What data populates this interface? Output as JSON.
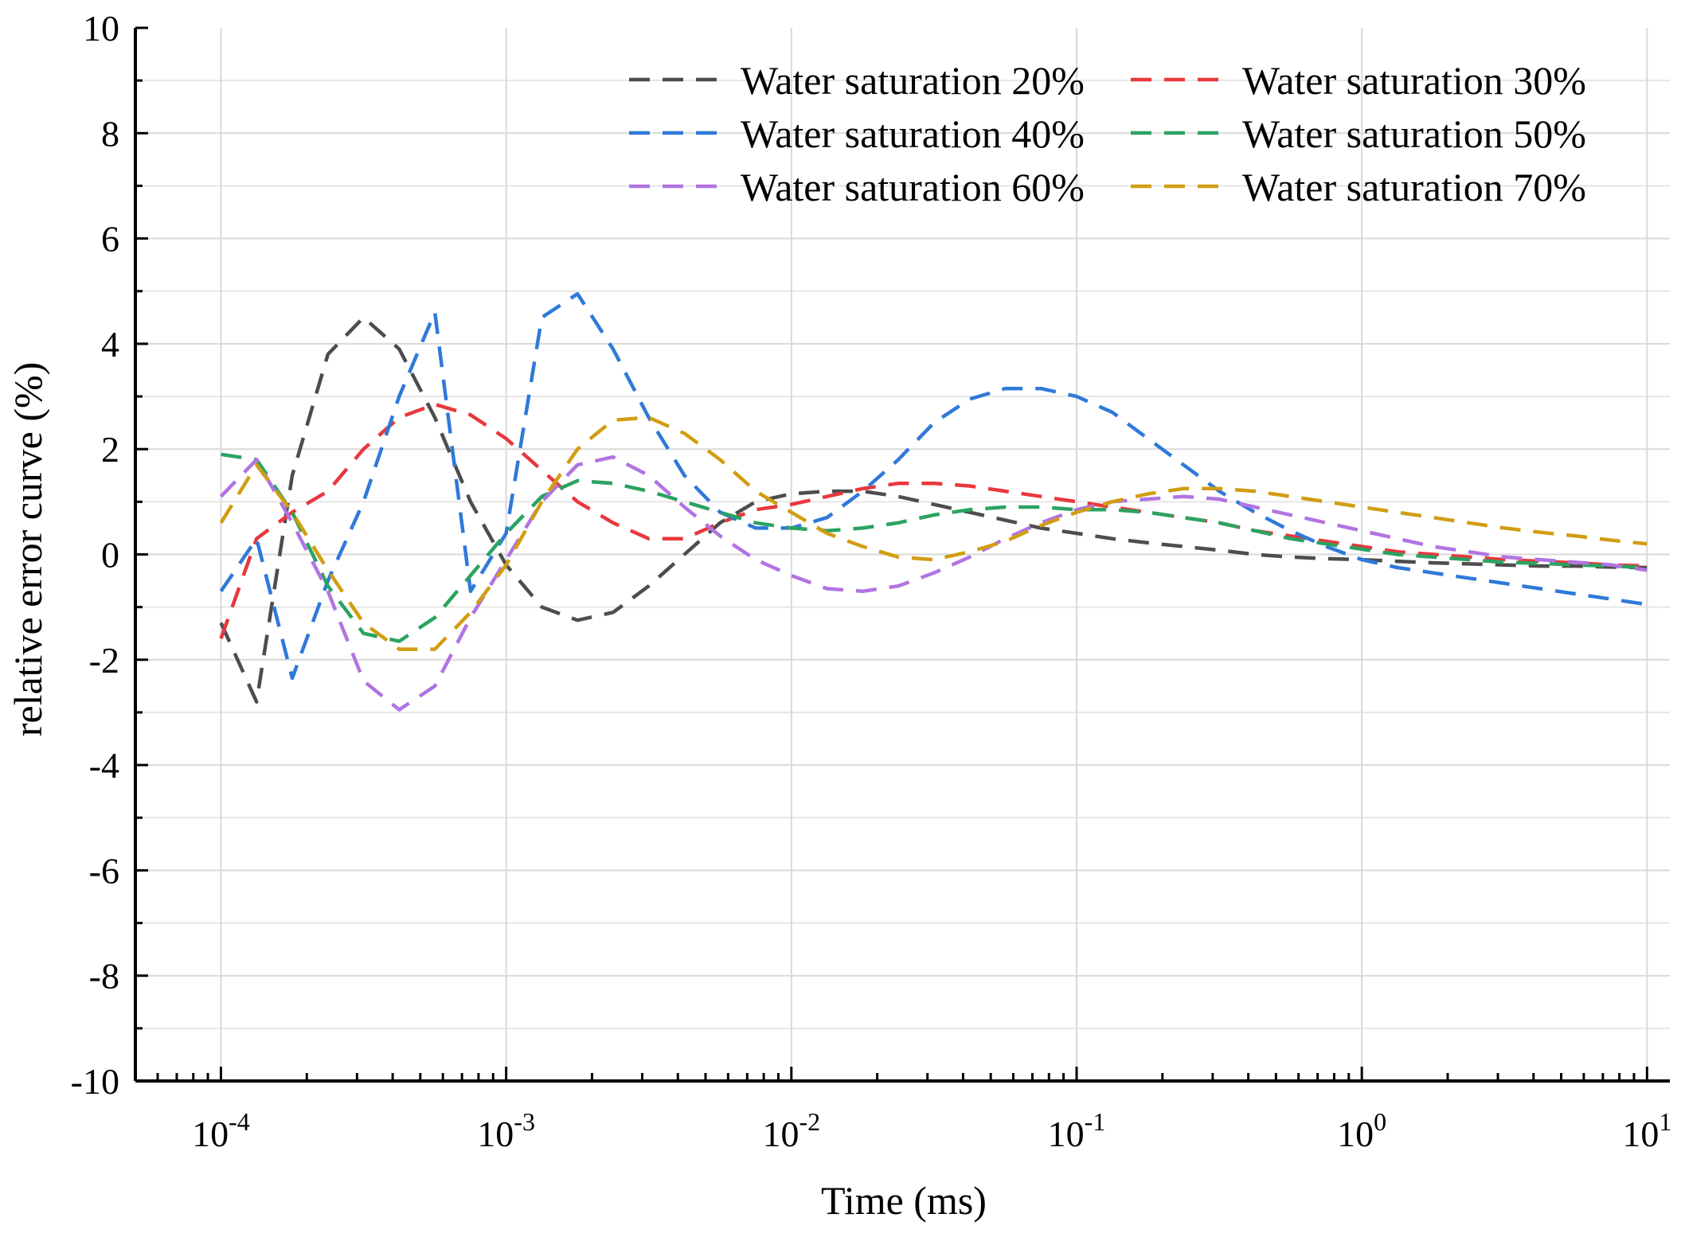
{
  "chart_data": {
    "type": "line",
    "title": "",
    "xlabel": "Time (ms)",
    "ylabel": "relative error curve (%)",
    "xscale": "log",
    "xlim_log10": [
      -4.3,
      1.08
    ],
    "ylim": [
      -10,
      10
    ],
    "grid": true,
    "legend_position": "top-right",
    "xticks": [
      {
        "value": -4,
        "base": "10",
        "exp": "-4"
      },
      {
        "value": -3,
        "base": "10",
        "exp": "-3"
      },
      {
        "value": -2,
        "base": "10",
        "exp": "-2"
      },
      {
        "value": -1,
        "base": "10",
        "exp": "-1"
      },
      {
        "value": 0,
        "base": "10",
        "exp": "0"
      },
      {
        "value": 1,
        "base": "10",
        "exp": "1"
      }
    ],
    "yticks": [
      "10",
      "8",
      "6",
      "4",
      "2",
      "0",
      "-2",
      "-4",
      "-6",
      "-8",
      "-10"
    ],
    "x_log10": [
      -4,
      -3.875,
      -3.75,
      -3.625,
      -3.5,
      -3.375,
      -3.25,
      -3.125,
      -3,
      -2.875,
      -2.75,
      -2.625,
      -2.5,
      -2.375,
      -2.25,
      -2.125,
      -2,
      -1.875,
      -1.75,
      -1.625,
      -1.5,
      -1.375,
      -1.25,
      -1.125,
      -1,
      -0.875,
      -0.75,
      -0.625,
      -0.5,
      -0.375,
      -0.25,
      -0.125,
      0,
      0.125,
      0.25,
      0.375,
      0.5,
      0.625,
      0.75,
      0.875,
      1
    ],
    "series": [
      {
        "name": "Water saturation 20%",
        "color": "#4d4d4d",
        "values": [
          -1.3,
          -2.8,
          1.5,
          3.8,
          4.5,
          3.9,
          2.6,
          1.0,
          -0.2,
          -1.0,
          -1.25,
          -1.1,
          -0.6,
          0.0,
          0.6,
          1.0,
          1.15,
          1.2,
          1.2,
          1.1,
          0.95,
          0.8,
          0.65,
          0.5,
          0.4,
          0.3,
          0.22,
          0.15,
          0.08,
          0.0,
          -0.05,
          -0.08,
          -0.1,
          -0.13,
          -0.16,
          -0.18,
          -0.2,
          -0.22,
          -0.22,
          -0.24,
          -0.25
        ]
      },
      {
        "name": "Water saturation 30%",
        "color": "#e8383d",
        "values": [
          -1.6,
          0.3,
          0.8,
          1.2,
          2.0,
          2.6,
          2.85,
          2.65,
          2.2,
          1.6,
          1.0,
          0.6,
          0.3,
          0.3,
          0.6,
          0.85,
          0.95,
          1.1,
          1.25,
          1.35,
          1.35,
          1.3,
          1.2,
          1.1,
          1.0,
          0.9,
          0.8,
          0.7,
          0.6,
          0.45,
          0.35,
          0.25,
          0.15,
          0.05,
          0.0,
          -0.05,
          -0.1,
          -0.13,
          -0.16,
          -0.2,
          -0.22
        ]
      },
      {
        "name": "Water saturation 40%",
        "color": "#2f79d9",
        "values": [
          -0.7,
          0.3,
          -2.35,
          -0.5,
          1.0,
          3.0,
          4.6,
          -0.7,
          0.4,
          4.5,
          4.95,
          3.9,
          2.6,
          1.5,
          0.8,
          0.5,
          0.5,
          0.7,
          1.2,
          1.8,
          2.5,
          2.95,
          3.15,
          3.15,
          3.0,
          2.7,
          2.2,
          1.7,
          1.2,
          0.8,
          0.45,
          0.15,
          -0.1,
          -0.25,
          -0.35,
          -0.45,
          -0.55,
          -0.65,
          -0.75,
          -0.85,
          -0.95
        ]
      },
      {
        "name": "Water saturation 50%",
        "color": "#2aa361",
        "values": [
          1.9,
          1.8,
          0.8,
          -0.6,
          -1.5,
          -1.65,
          -1.2,
          -0.4,
          0.4,
          1.1,
          1.4,
          1.35,
          1.2,
          1.0,
          0.8,
          0.6,
          0.5,
          0.45,
          0.5,
          0.6,
          0.75,
          0.85,
          0.9,
          0.9,
          0.85,
          0.85,
          0.8,
          0.7,
          0.6,
          0.45,
          0.3,
          0.2,
          0.1,
          0.0,
          -0.05,
          -0.1,
          -0.15,
          -0.17,
          -0.2,
          -0.22,
          -0.25
        ]
      },
      {
        "name": "Water saturation 60%",
        "color": "#b174e3",
        "values": [
          1.1,
          1.8,
          0.6,
          -0.7,
          -2.4,
          -2.95,
          -2.5,
          -1.2,
          -0.1,
          1.0,
          1.7,
          1.85,
          1.5,
          0.9,
          0.35,
          -0.1,
          -0.4,
          -0.65,
          -0.7,
          -0.6,
          -0.35,
          -0.05,
          0.3,
          0.6,
          0.85,
          1.0,
          1.05,
          1.1,
          1.05,
          0.9,
          0.75,
          0.6,
          0.45,
          0.3,
          0.15,
          0.05,
          -0.05,
          -0.1,
          -0.15,
          -0.2,
          -0.3
        ]
      },
      {
        "name": "Water saturation 70%",
        "color": "#d19d12",
        "values": [
          0.6,
          1.7,
          0.8,
          -0.3,
          -1.3,
          -1.8,
          -1.8,
          -1.1,
          -0.2,
          1.0,
          2.0,
          2.55,
          2.6,
          2.3,
          1.8,
          1.2,
          0.8,
          0.4,
          0.15,
          -0.05,
          -0.1,
          0.05,
          0.25,
          0.55,
          0.8,
          1.0,
          1.15,
          1.25,
          1.25,
          1.2,
          1.1,
          1.0,
          0.9,
          0.8,
          0.7,
          0.6,
          0.5,
          0.42,
          0.35,
          0.27,
          0.2
        ]
      }
    ]
  }
}
